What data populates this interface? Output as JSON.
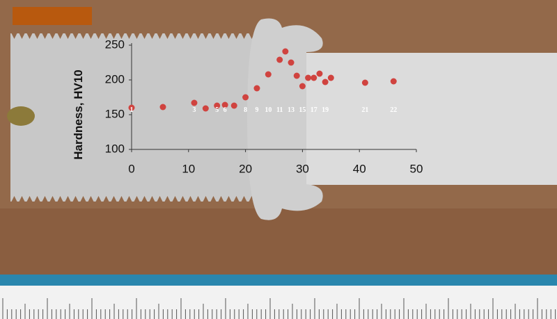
{
  "chart_data": {
    "type": "scatter",
    "y_axis_label": "Hardness, HV10",
    "x": [
      0,
      5.5,
      11,
      13,
      15,
      16.4,
      18,
      20,
      22,
      24,
      26,
      27,
      28,
      29,
      30,
      31,
      32,
      33,
      34,
      35,
      41,
      46
    ],
    "series": [
      {
        "color": "#d0433f",
        "values": [
          160,
          161,
          167,
          159,
          163,
          164,
          163,
          175,
          188,
          208,
          229,
          241,
          225,
          206,
          191,
          203,
          203,
          209,
          197,
          203,
          196,
          198
        ]
      }
    ],
    "point_labels": [
      "1",
      null,
      "3",
      null,
      "5",
      "6",
      null,
      "8",
      "9",
      "10",
      "11",
      null,
      "13",
      null,
      "15",
      null,
      "17",
      null,
      "19",
      null,
      "21",
      "22"
    ],
    "xlim": [
      0,
      50
    ],
    "xticks": [
      0,
      10,
      20,
      30,
      40,
      50
    ],
    "ylim": [
      100,
      250
    ],
    "yticks": [
      100,
      150,
      200,
      250
    ]
  }
}
